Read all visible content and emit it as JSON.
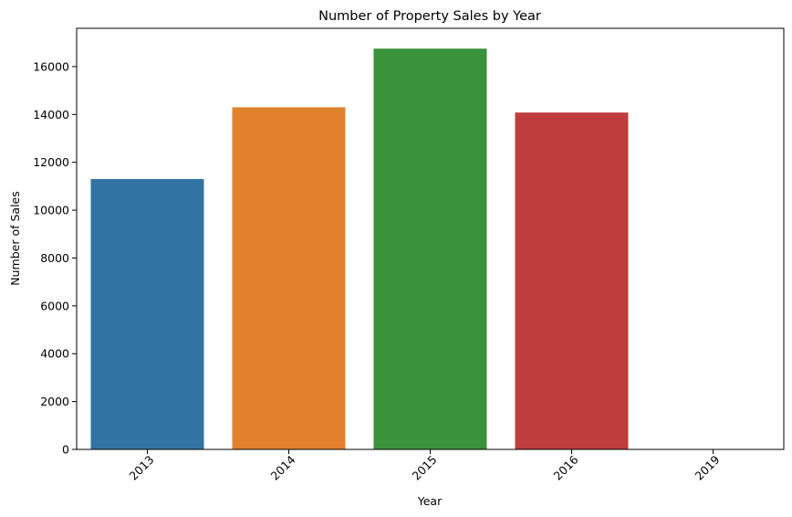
{
  "chart_data": {
    "type": "bar",
    "title": "Number of Property Sales by Year",
    "xlabel": "Year",
    "ylabel": "Number of Sales",
    "categories": [
      "2013",
      "2014",
      "2015",
      "2016",
      "2019"
    ],
    "values": [
      11300,
      14300,
      16750,
      14080,
      2
    ],
    "colors": [
      "#3274a1",
      "#e1812c",
      "#3a923a",
      "#c03d3e",
      "#9372b2"
    ],
    "ylim": [
      0,
      17600
    ],
    "yticks": [
      0,
      2000,
      4000,
      6000,
      8000,
      10000,
      12000,
      14000,
      16000
    ],
    "xtick_rotation": 45,
    "grid": false,
    "legend": false
  }
}
